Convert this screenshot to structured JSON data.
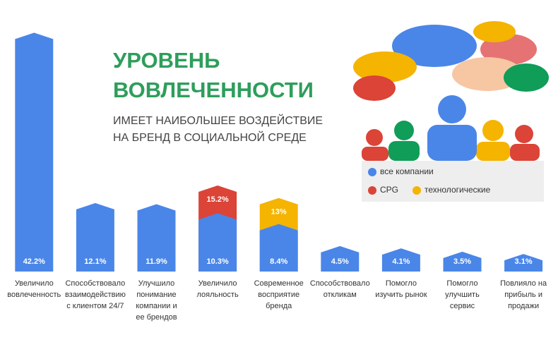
{
  "chart_data": {
    "type": "bar",
    "title": [
      "УРОВЕНЬ",
      "ВОВЛЕЧЕННОСТИ"
    ],
    "subtitle": [
      "ИМЕЕТ НАИБОЛЬШЕЕ ВОЗДЕЙСТВИЕ",
      "НА БРЕНД В СОЦИАЛЬНОЙ СРЕДЕ"
    ],
    "categories": [
      [
        "Увеличило",
        "вовлеченность"
      ],
      [
        "Способствовало",
        "взаимодействию",
        "с клиентом 24/7"
      ],
      [
        "Улучшило",
        "понимание",
        "компании и",
        "ее брендов"
      ],
      [
        "Увеличило",
        "лояльность"
      ],
      [
        "Современное",
        "восприятие",
        "бренда"
      ],
      [
        "Способствовало",
        "откликам"
      ],
      [
        "Помогло",
        "изучить рынок"
      ],
      [
        "Помогло",
        "улучшить",
        "сервис"
      ],
      [
        "Повлияло на",
        "прибыль и",
        "продажи"
      ]
    ],
    "series": [
      {
        "name": "все компании",
        "color": "#4a86e8",
        "values": [
          42.2,
          12.1,
          11.9,
          10.3,
          8.4,
          4.5,
          4.1,
          3.5,
          3.1
        ],
        "value_labels": [
          "42.2%",
          "12.1%",
          "11.9%",
          "10.3%",
          "8.4%",
          "4.5%",
          "4.1%",
          "3.5%",
          "3.1%"
        ]
      },
      {
        "name": "CPG",
        "color": "#db4437",
        "values": [
          null,
          null,
          null,
          15.2,
          null,
          null,
          null,
          null,
          null
        ],
        "value_labels": [
          null,
          null,
          null,
          "15.2%",
          null,
          null,
          null,
          null,
          null
        ]
      },
      {
        "name": "технологические",
        "color": "#f4b400",
        "values": [
          null,
          null,
          null,
          null,
          13,
          null,
          null,
          null,
          null
        ],
        "value_labels": [
          null,
          null,
          null,
          null,
          "13%",
          null,
          null,
          null,
          null
        ]
      }
    ],
    "ylim": [
      0,
      43
    ]
  }
}
